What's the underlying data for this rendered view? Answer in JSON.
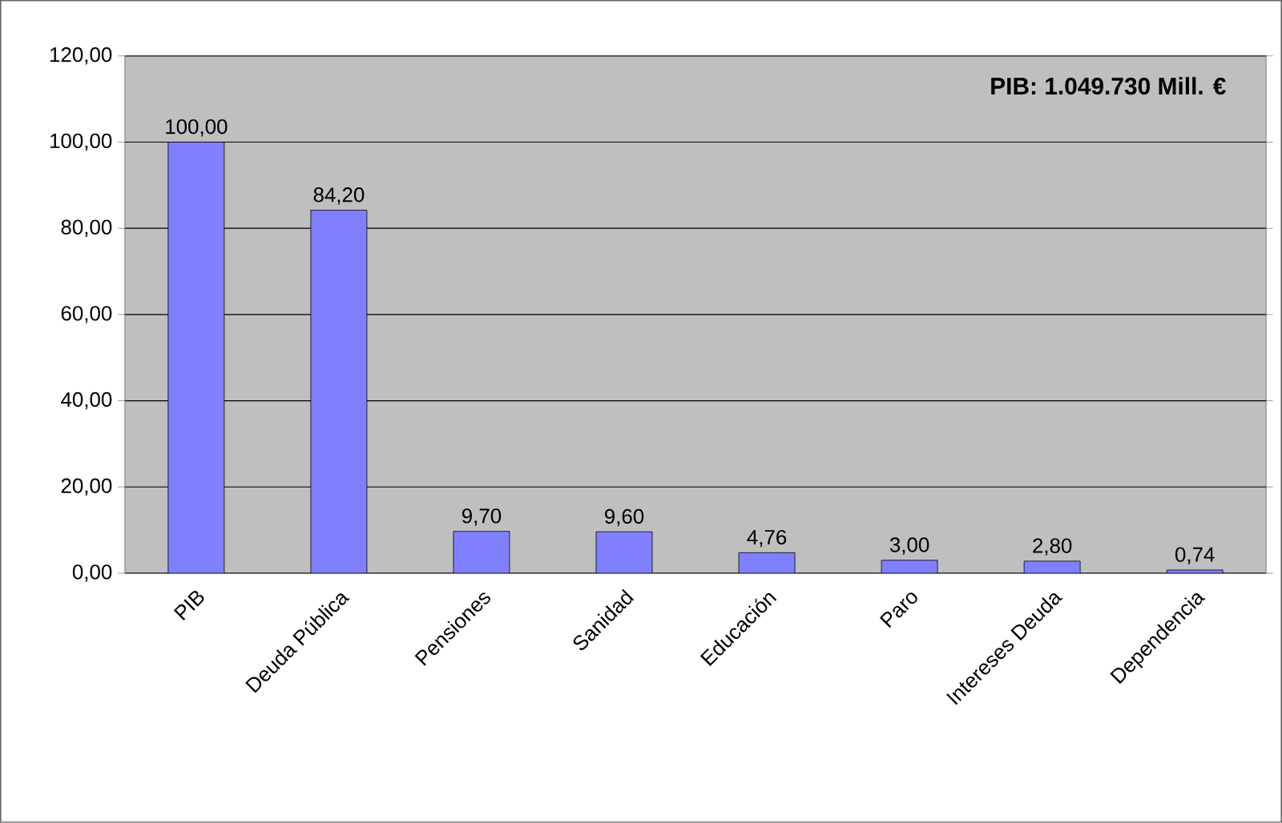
{
  "chart_data": {
    "type": "bar",
    "title": "PIB: 1.049.730 Mill. €",
    "categories": [
      "PIB",
      "Deuda Pública",
      "Pensiones",
      "Sanidad",
      "Educación",
      "Paro",
      "Intereses Deuda",
      "Dependencia"
    ],
    "values": [
      100,
      84.2,
      9.7,
      9.6,
      4.76,
      3,
      2.8,
      0.74
    ],
    "value_labels": [
      "100,00",
      "84,20",
      "9,70",
      "9,60",
      "4,76",
      "3,00",
      "2,80",
      "0,74"
    ],
    "color": "#8080ff",
    "ylim": [
      0,
      120
    ],
    "yticks": [
      {
        "value": 0,
        "label": "0,00"
      },
      {
        "value": 20,
        "label": "20,00"
      },
      {
        "value": 40,
        "label": "40,00"
      },
      {
        "value": 60,
        "label": "60,00"
      },
      {
        "value": 80,
        "label": "80,00"
      },
      {
        "value": 100,
        "label": "100,00"
      },
      {
        "value": 120,
        "label": "120,00"
      }
    ],
    "grid": "y"
  }
}
